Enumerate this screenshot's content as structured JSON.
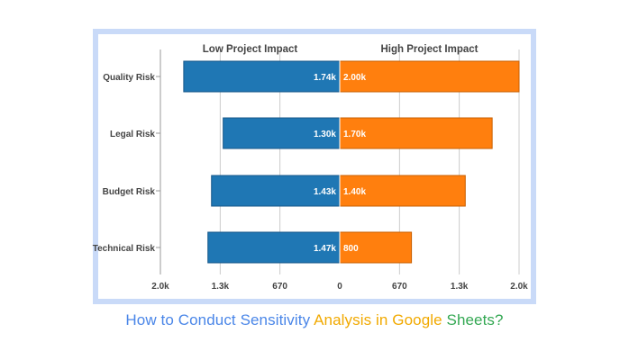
{
  "chart_data": {
    "type": "bar",
    "subtype": "tornado",
    "title": "",
    "categories": [
      "Quality Risk",
      "Legal Risk",
      "Budget Risk",
      "Technical Risk"
    ],
    "series": [
      {
        "name": "Low Project Impact",
        "values": [
          1740,
          1300,
          1430,
          1470
        ],
        "labels": [
          "1.74k",
          "1.30k",
          "1.43k",
          "1.47k"
        ],
        "color": "#1f77b4"
      },
      {
        "name": "High Project Impact",
        "values": [
          2000,
          1700,
          1400,
          800
        ],
        "labels": [
          "2.00k",
          "1.70k",
          "1.40k",
          "800"
        ],
        "color": "#ff7f0e"
      }
    ],
    "axis_ticks": [
      "2.0k",
      "1.3k",
      "670",
      "0",
      "670",
      "1.3k",
      "2.0k"
    ],
    "tick_values": [
      -2000,
      -1333,
      -667,
      0,
      667,
      1333,
      2000
    ],
    "xlim": [
      -2000,
      2000
    ],
    "grid": true
  },
  "caption": {
    "parts": [
      {
        "text": "How to Conduct Sensitivity ",
        "color": "#4a86e8"
      },
      {
        "text": "Analysis in Google ",
        "color": "#f1a900"
      },
      {
        "text": "Sheets?",
        "color": "#34a853"
      }
    ]
  },
  "colors": {
    "frame": "#c9daf8",
    "axis": "#999999",
    "grid": "#cccccc"
  }
}
